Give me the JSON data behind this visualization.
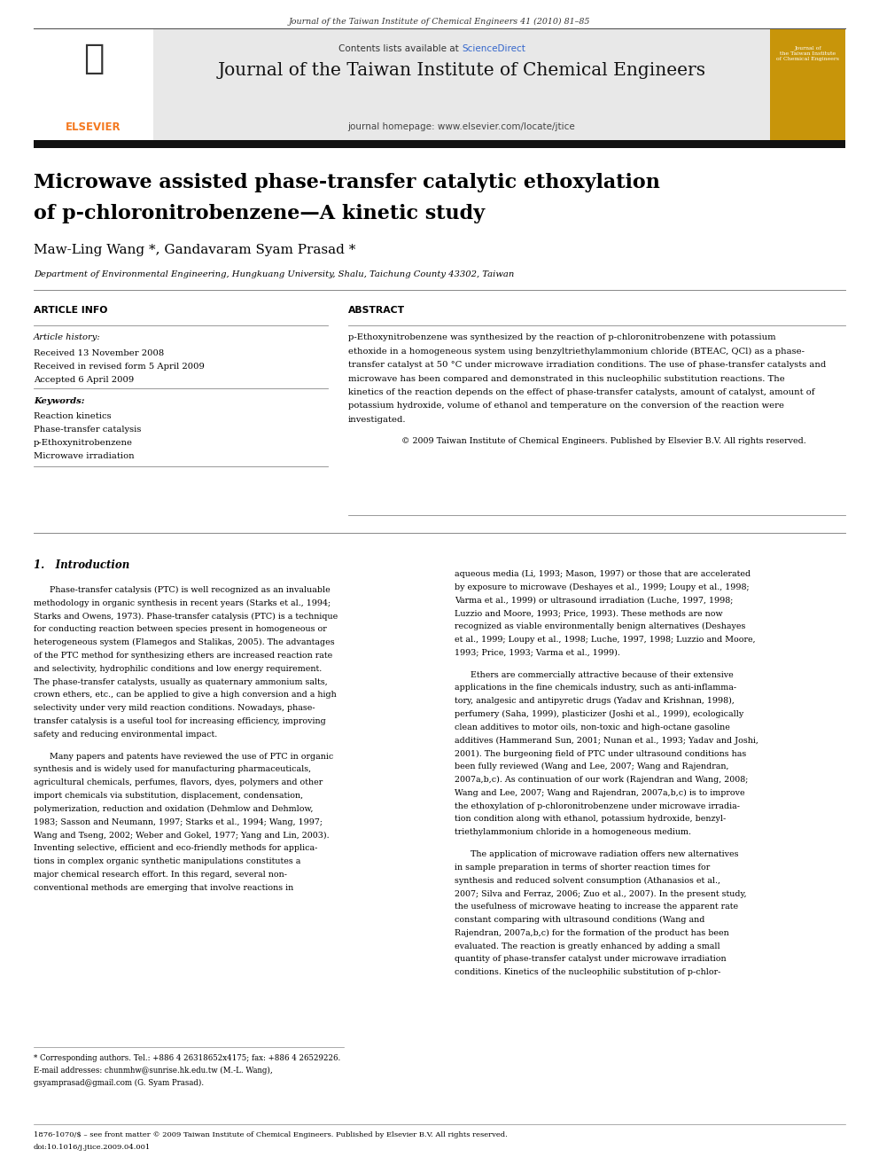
{
  "page_width": 9.92,
  "page_height": 13.23,
  "dpi": 100,
  "background_color": "#ffffff",
  "top_journal_line": "Journal of the Taiwan Institute of Chemical Engineers 41 (2010) 81–85",
  "header_journal_title": "Journal of the Taiwan Institute of Chemical Engineers",
  "header_homepage": "journal homepage: www.elsevier.com/locate/jtice",
  "article_title_line1": "Microwave assisted phase-transfer catalytic ethoxylation",
  "article_title_line2": "of p-chloronitrobenzene—A kinetic study",
  "authors_line": "Maw-Ling Wang *, Gandavaram Syam Prasad *",
  "affiliation": "Department of Environmental Engineering, Hungkuang University, Shalu, Taichung County 43302, Taiwan",
  "received1": "Received 13 November 2008",
  "received2": "Received in revised form 5 April 2009",
  "accepted": "Accepted 6 April 2009",
  "keyword1": "Reaction kinetics",
  "keyword2": "Phase-transfer catalysis",
  "keyword3": "p-Ethoxynitrobenzene",
  "keyword4": "Microwave irradiation",
  "abstract_text": "p-Ethoxynitrobenzene was synthesized by the reaction of p-chloronitrobenzene with potassium\nethoxide in a homogeneous system using benzyltriethylammonium chloride (BTEAC, QCl) as a phase-\ntransfer catalyst at 50 °C under microwave irradiation conditions. The use of phase-transfer catalysts and\nmicrowave has been compared and demonstrated in this nucleophilic substitution reactions. The\nkinetics of the reaction depends on the effect of phase-transfer catalysts, amount of catalyst, amount of\npotassium hydroxide, volume of ethanol and temperature on the conversion of the reaction were\ninvestigated.",
  "copyright": "© 2009 Taiwan Institute of Chemical Engineers. Published by Elsevier B.V. All rights reserved.",
  "section1_title": "1.   Introduction",
  "col1_indent": "      Phase-transfer catalysis (PTC) is well recognized as an invaluable\nmethodology in organic synthesis in recent years (Starks et al., 1994;\nStarks and Owens, 1973). Phase-transfer catalysis (PTC) is a technique\nfor conducting reaction between species present in homogeneous or\nheterogeneous system (Flamegos and Stalikas, 2005). The advantages\nof the PTC method for synthesizing ethers are increased reaction rate\nand selectivity, hydrophilic conditions and low energy requirement.\nThe phase-transfer catalysts, usually as quaternary ammonium salts,\ncrown ethers, etc., can be applied to give a high conversion and a high\nselectivity under very mild reaction conditions. Nowadays, phase-\ntransfer catalysis is a useful tool for increasing efficiency, improving\nsafety and reducing environmental impact.",
  "col1_para2": "      Many papers and patents have reviewed the use of PTC in organic\nsynthesis and is widely used for manufacturing pharmaceuticals,\nagricultural chemicals, perfumes, flavors, dyes, polymers and other\nimport chemicals via substitution, displacement, condensation,\npolymerization, reduction and oxidation (Dehmlow and Dehmlow,\n1983; Sasson and Neumann, 1997; Starks et al., 1994; Wang, 1997;\nWang and Tseng, 2002; Weber and Gokel, 1977; Yang and Lin, 2003).\nInventing selective, efficient and eco-friendly methods for applica-\ntions in complex organic synthetic manipulations constitutes a\nmajor chemical research effort. In this regard, several non-\nconventional methods are emerging that involve reactions in",
  "col2_para1": "aqueous media (Li, 1993; Mason, 1997) or those that are accelerated\nby exposure to microwave (Deshayes et al., 1999; Loupy et al., 1998;\nVarma et al., 1999) or ultrasound irradiation (Luche, 1997, 1998;\nLuzzio and Moore, 1993; Price, 1993). These methods are now\nrecognized as viable environmentally benign alternatives (Deshayes\net al., 1999; Loupy et al., 1998; Luche, 1997, 1998; Luzzio and Moore,\n1993; Price, 1993; Varma et al., 1999).",
  "col2_para2": "      Ethers are commercially attractive because of their extensive\napplications in the fine chemicals industry, such as anti-inflamma-\ntory, analgesic and antipyretic drugs (Yadav and Krishnan, 1998),\nperfumery (Saha, 1999), plasticizer (Joshi et al., 1999), ecologically\nclean additives to motor oils, non-toxic and high-octane gasoline\nadditives (Hammerand Sun, 2001; Nunan et al., 1993; Yadav and Joshi,\n2001). The burgeoning field of PTC under ultrasound conditions has\nbeen fully reviewed (Wang and Lee, 2007; Wang and Rajendran,\n2007a,b,c). As continuation of our work (Rajendran and Wang, 2008;\nWang and Lee, 2007; Wang and Rajendran, 2007a,b,c) is to improve\nthe ethoxylation of p-chloronitrobenzene under microwave irradia-\ntion condition along with ethanol, potassium hydroxide, benzyl-\ntriethylammonium chloride in a homogeneous medium.",
  "col2_para3": "      The application of microwave radiation offers new alternatives\nin sample preparation in terms of shorter reaction times for\nsynthesis and reduced solvent consumption (Athanasios et al.,\n2007; Silva and Ferraz, 2006; Zuo et al., 2007). In the present study,\nthe usefulness of microwave heating to increase the apparent rate\nconstant comparing with ultrasound conditions (Wang and\nRajendran, 2007a,b,c) for the formation of the product has been\nevaluated. The reaction is greatly enhanced by adding a small\nquantity of phase-transfer catalyst under microwave irradiation\nconditions. Kinetics of the nucleophilic substitution of p-chlor-",
  "footnote_line1": "* Corresponding authors. Tel.: +886 4 26318652x4175; fax: +886 4 26529226.",
  "footnote_line2": "E-mail addresses: chunmhw@sunrise.hk.edu.tw (M.-L. Wang),",
  "footnote_line3": "gsyamprasad@gmail.com (G. Syam Prasad).",
  "footer_issn": "1876-1070/$ – see front matter © 2009 Taiwan Institute of Chemical Engineers. Published by Elsevier B.V. All rights reserved.",
  "footer_doi": "doi:10.1016/j.jtice.2009.04.001",
  "link_color": "#3366cc",
  "elsevier_orange": "#f47920",
  "text_color": "#000000",
  "gray_color": "#888888",
  "col_split": 0.47
}
